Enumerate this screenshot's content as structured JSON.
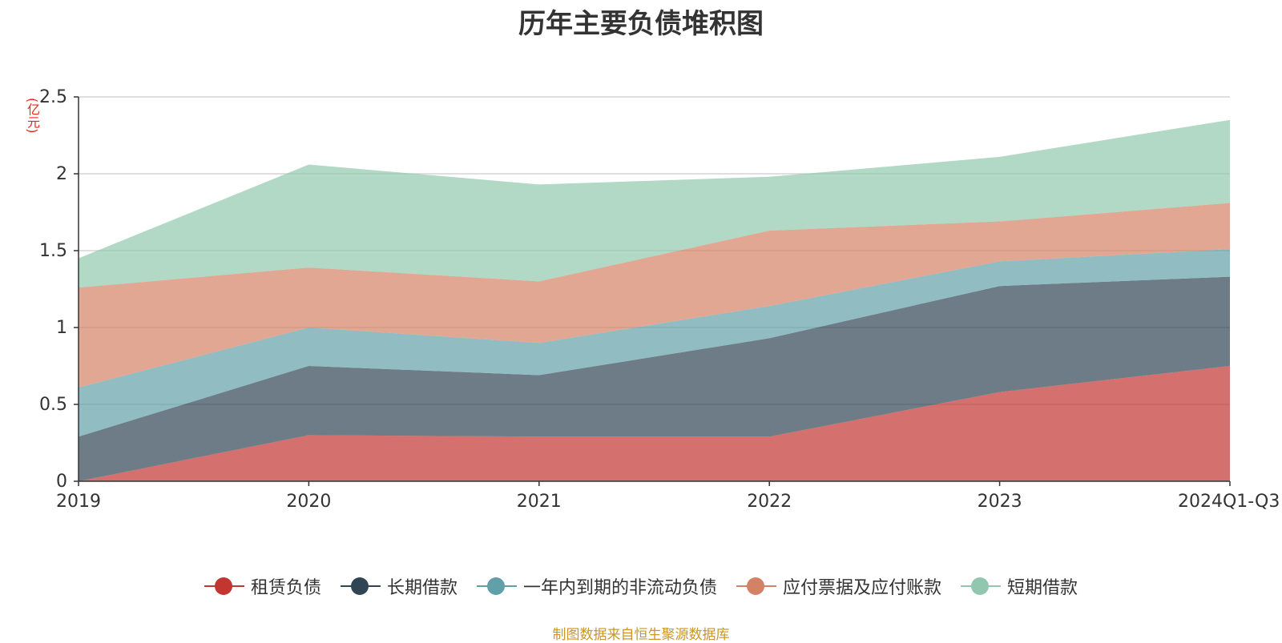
{
  "chart_data": {
    "type": "area",
    "stacked": true,
    "title": "历年主要负债堆积图",
    "ylabel": "(亿元)",
    "categories": [
      "2019",
      "2020",
      "2021",
      "2022",
      "2023",
      "2024Q1-Q3"
    ],
    "yticks": [
      "0",
      "0.5",
      "1",
      "1.5",
      "2",
      "2.5"
    ],
    "ylim": [
      0,
      2.5
    ],
    "grid": true,
    "legend_position": "bottom",
    "series": [
      {
        "name": "租赁负债",
        "color": "#c23531",
        "values": [
          0.0,
          0.3,
          0.29,
          0.29,
          0.58,
          0.75
        ]
      },
      {
        "name": "长期借款",
        "color": "#2f4554",
        "values": [
          0.29,
          0.45,
          0.4,
          0.64,
          0.69,
          0.58
        ]
      },
      {
        "name": "一年内到期的非流动负债",
        "color": "#61a0a8",
        "values": [
          0.32,
          0.25,
          0.21,
          0.21,
          0.16,
          0.18
        ]
      },
      {
        "name": "应付票据及应付账款",
        "color": "#d48265",
        "values": [
          0.65,
          0.39,
          0.4,
          0.49,
          0.26,
          0.3
        ]
      },
      {
        "name": "短期借款",
        "color": "#91c7ae",
        "values": [
          0.19,
          0.67,
          0.63,
          0.35,
          0.42,
          0.54
        ]
      }
    ]
  },
  "source_note": "制图数据来自恒生聚源数据库"
}
